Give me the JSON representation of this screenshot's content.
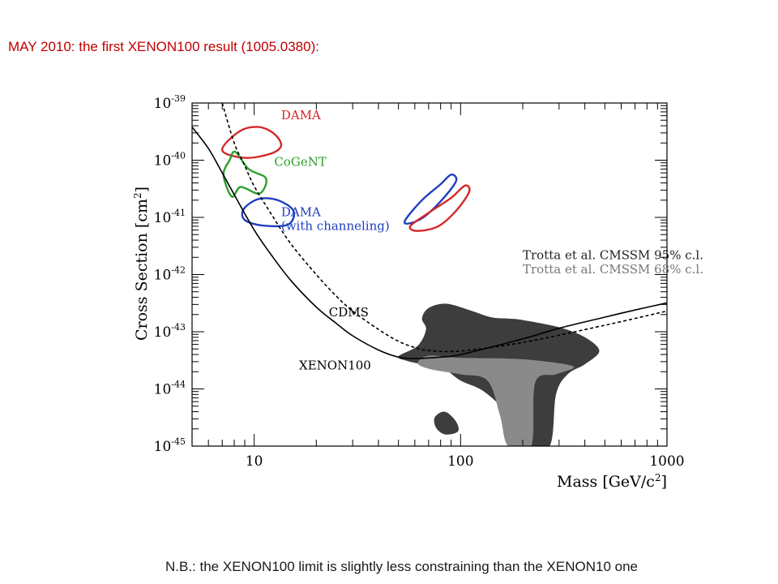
{
  "slide": {
    "title": "MAY 2010: the first XENON100 result (1005.0380):",
    "note": "N.B.: the XENON100 limit is slightly less constraining than the XENON10 one"
  },
  "chart_data": {
    "type": "line",
    "xscale": "log",
    "yscale": "log",
    "xlim": [
      5,
      1000
    ],
    "ylim": [
      1e-45,
      1e-39
    ],
    "xlabel": "Mass [GeV/c²]",
    "ylabel": "Cross Section [cm²]",
    "x_ticks": [
      {
        "value": 10,
        "label": "10"
      },
      {
        "value": 100,
        "label": "100"
      },
      {
        "value": 1000,
        "label": "1000"
      }
    ],
    "y_ticks": [
      {
        "value": -39,
        "base": "10",
        "exp": "-39"
      },
      {
        "value": -40,
        "base": "10",
        "exp": "-40"
      },
      {
        "value": -41,
        "base": "10",
        "exp": "-41"
      },
      {
        "value": -42,
        "base": "10",
        "exp": "-42"
      },
      {
        "value": -43,
        "base": "10",
        "exp": "-43"
      },
      {
        "value": -44,
        "base": "10",
        "exp": "-44"
      },
      {
        "value": -45,
        "base": "10",
        "exp": "-45"
      }
    ],
    "series": [
      {
        "name": "XENON100",
        "style": "solid",
        "color": "#000000",
        "points": [
          [
            5,
            3.8e-40
          ],
          [
            6,
            1.6e-40
          ],
          [
            7,
            6e-41
          ],
          [
            8,
            2.5e-41
          ],
          [
            10,
            6e-42
          ],
          [
            12,
            2.3e-42
          ],
          [
            15,
            8e-43
          ],
          [
            20,
            2.7e-43
          ],
          [
            25,
            1.4e-43
          ],
          [
            30,
            8.5e-44
          ],
          [
            40,
            4.8e-44
          ],
          [
            50,
            3.6e-44
          ],
          [
            60,
            3.4e-44
          ],
          [
            80,
            3.6e-44
          ],
          [
            100,
            4e-44
          ],
          [
            200,
            7.5e-44
          ],
          [
            300,
            1.15e-43
          ],
          [
            500,
            1.8e-43
          ],
          [
            700,
            2.4e-43
          ],
          [
            1000,
            3.2e-43
          ]
        ]
      },
      {
        "name": "CDMS",
        "style": "dashed",
        "color": "#000000",
        "points": [
          [
            7,
            1e-39
          ],
          [
            8,
            2e-40
          ],
          [
            9,
            8e-41
          ],
          [
            10,
            3.5e-41
          ],
          [
            12,
            1.2e-41
          ],
          [
            15,
            3.5e-42
          ],
          [
            20,
            1e-42
          ],
          [
            25,
            4.2e-43
          ],
          [
            30,
            2.3e-43
          ],
          [
            40,
            1.1e-43
          ],
          [
            50,
            6.8e-44
          ],
          [
            60,
            5.3e-44
          ],
          [
            70,
            4.7e-44
          ],
          [
            100,
            4.6e-44
          ],
          [
            200,
            6.5e-44
          ],
          [
            500,
            1.3e-43
          ],
          [
            1000,
            2.3e-43
          ]
        ]
      }
    ],
    "regions": [
      {
        "name": "DAMA",
        "color": "#d62728",
        "type": "contour",
        "points": [
          [
            7,
            1.5e-40
          ],
          [
            8.5,
            3.2e-40
          ],
          [
            10.5,
            3.8e-40
          ],
          [
            12.5,
            2.9e-40
          ],
          [
            13.5,
            1.8e-40
          ],
          [
            12,
            1.3e-40
          ],
          [
            9,
            1.1e-40
          ]
        ]
      },
      {
        "name": "CoGeNT",
        "color": "#2ca02c",
        "type": "contour",
        "points": [
          [
            7.1,
            5.5e-41
          ],
          [
            7.6,
            1e-40
          ],
          [
            8.1,
            1.4e-40
          ],
          [
            9.4,
            7e-41
          ],
          [
            11.4,
            4.8e-41
          ],
          [
            10.6,
            2.6e-41
          ],
          [
            8.6,
            3.4e-41
          ],
          [
            7.8,
            2.3e-41
          ]
        ]
      },
      {
        "name": "DAMA (with channeling)",
        "color": "#1f3fbf",
        "type": "contour",
        "points": [
          [
            8.9,
            1.4e-41
          ],
          [
            10.5,
            2.1e-41
          ],
          [
            13,
            2e-41
          ],
          [
            15.5,
            1.3e-41
          ],
          [
            14.6,
            7.5e-42
          ],
          [
            11,
            7.2e-42
          ],
          [
            9,
            9e-42
          ]
        ]
      },
      {
        "name": "DAMA high-mass (blue)",
        "color": "#1f3fbf",
        "type": "contour",
        "points": [
          [
            54,
            9e-42
          ],
          [
            65,
            2e-41
          ],
          [
            80,
            3.8e-41
          ],
          [
            90,
            5.6e-41
          ],
          [
            95,
            4.3e-41
          ],
          [
            81,
            2e-41
          ],
          [
            66,
            1e-41
          ],
          [
            56,
            7.8e-42
          ]
        ]
      },
      {
        "name": "DAMA high-mass (red)",
        "color": "#d62728",
        "type": "contour",
        "points": [
          [
            57,
            7e-42
          ],
          [
            70,
            1.2e-41
          ],
          [
            90,
            2.2e-41
          ],
          [
            105,
            3.6e-41
          ],
          [
            110,
            2.8e-41
          ],
          [
            95,
            1.3e-41
          ],
          [
            78,
            7e-42
          ],
          [
            62,
            5.8e-42
          ]
        ]
      }
    ],
    "shaded": [
      {
        "name": "Trotta et al. CMSSM 95% c.l.",
        "color": "#3d3d3d",
        "points": [
          [
            50,
            3.7e-44
          ],
          [
            62,
            5.7e-44
          ],
          [
            68,
            1.1e-43
          ],
          [
            65,
            1.7e-43
          ],
          [
            70,
            2.6e-43
          ],
          [
            85,
            3.1e-43
          ],
          [
            110,
            2.4e-43
          ],
          [
            140,
            1.8e-43
          ],
          [
            170,
            1.7e-43
          ],
          [
            200,
            1.6e-43
          ],
          [
            300,
            1.2e-43
          ],
          [
            400,
            8e-44
          ],
          [
            470,
            4.6e-44
          ],
          [
            400,
            2.7e-44
          ],
          [
            330,
            1.8e-44
          ],
          [
            290,
            8e-45
          ],
          [
            270,
            1e-45
          ],
          [
            205,
            1e-45
          ],
          [
            170,
            3.5e-45
          ],
          [
            130,
            9e-45
          ],
          [
            100,
            1.4e-44
          ],
          [
            82,
            2.3e-44
          ],
          [
            65,
            2.7e-44
          ],
          [
            55,
            3.1e-44
          ]
        ]
      },
      {
        "name": "Trotta et al. CMSSM 68% c.l.",
        "color": "#8a8a8a",
        "points": [
          [
            62,
            2.8e-44
          ],
          [
            70,
            3.8e-44
          ],
          [
            100,
            3.5e-44
          ],
          [
            200,
            3.3e-44
          ],
          [
            350,
            2.5e-44
          ],
          [
            290,
            1.8e-44
          ],
          [
            230,
            1.3e-44
          ],
          [
            220,
            1e-45
          ],
          [
            170,
            1e-45
          ],
          [
            155,
            3.5e-45
          ],
          [
            135,
            1.4e-44
          ],
          [
            100,
            1.8e-44
          ],
          [
            72,
            2.2e-44
          ]
        ]
      },
      {
        "name": "Trotta blob small",
        "color": "#3d3d3d",
        "points": [
          [
            75,
            3.2e-45
          ],
          [
            84,
            4e-45
          ],
          [
            95,
            2.7e-45
          ],
          [
            97,
            1.8e-45
          ],
          [
            84,
            1.6e-45
          ],
          [
            76,
            2.1e-45
          ]
        ]
      }
    ],
    "annotations": [
      {
        "text": "DAMA",
        "color": "#d62728",
        "x": 13.5,
        "y": 5.2e-40
      },
      {
        "text": "CoGeNT",
        "color": "#2ca02c",
        "x": 12.5,
        "y": 8e-41
      },
      {
        "text": "DAMA",
        "color": "#1f3fbf",
        "x": 13.5,
        "y": 1.05e-41
      },
      {
        "text": "(with channeling)",
        "color": "#1f3fbf",
        "x": 13.5,
        "y": 6e-42
      },
      {
        "text": "Trotta et al. CMSSM 95% c.l.",
        "color": "#222222",
        "x": 200,
        "y": 1.85e-42
      },
      {
        "text": "Trotta et al. CMSSM 68% c.l.",
        "color": "#777777",
        "x": 200,
        "y": 1.05e-42
      },
      {
        "text": "CDMS",
        "color": "#000000",
        "x": 23,
        "y": 1.85e-43
      },
      {
        "text": "XENON100",
        "color": "#000000",
        "x": 16.5,
        "y": 2.2e-44
      }
    ]
  }
}
